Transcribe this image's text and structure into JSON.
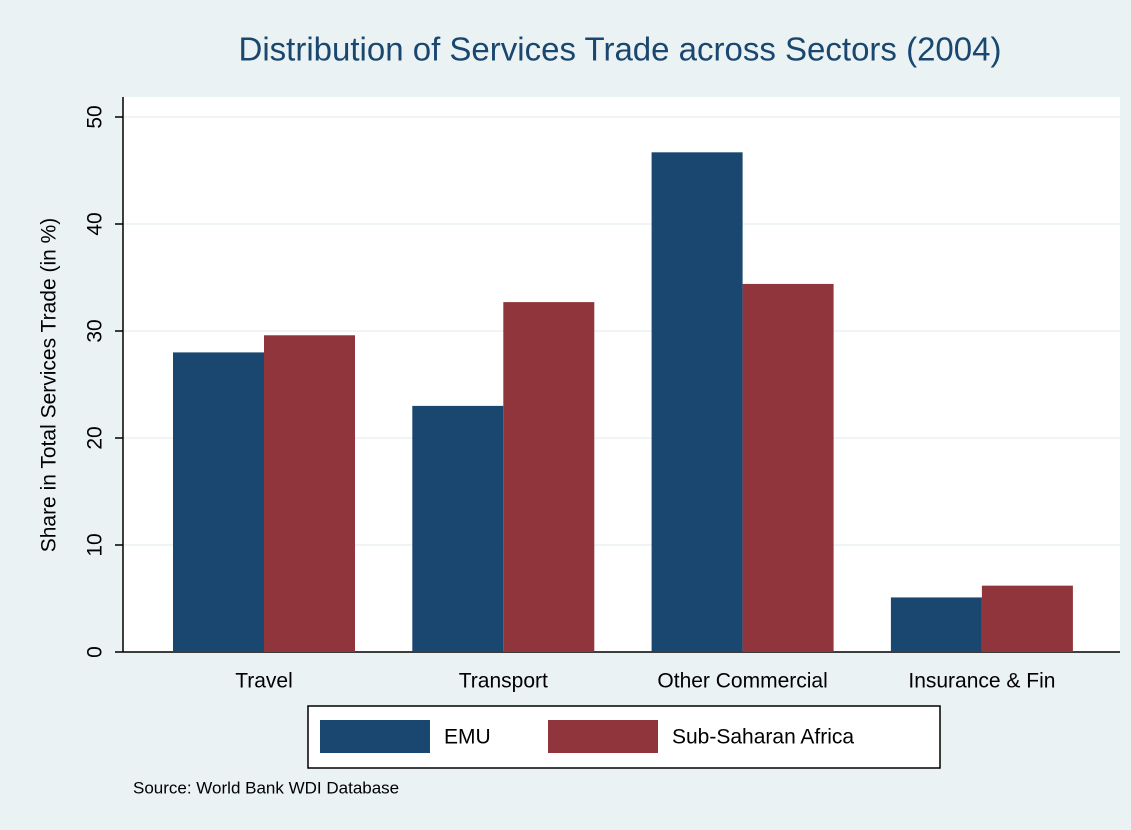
{
  "chart_data": {
    "type": "bar",
    "title": "Distribution of Services Trade across Sectors (2004)",
    "y_label": "Share in Total Services Trade (in %)",
    "note": "Source: World Bank WDI Database",
    "categories": [
      "Travel",
      "Transport",
      "Other Commercial",
      "Insurance & Fin"
    ],
    "series": [
      {
        "name": "EMU",
        "color": "#1a476f",
        "values": [
          28.0,
          23.0,
          46.7,
          5.1
        ]
      },
      {
        "name": "Sub-Saharan Africa",
        "color": "#90353b",
        "values": [
          29.6,
          32.7,
          34.4,
          6.2
        ]
      }
    ],
    "ylim": [
      0,
      50
    ],
    "yticks": [
      0,
      10,
      20,
      30,
      40,
      50
    ],
    "grid": true,
    "legend": "bottom"
  }
}
